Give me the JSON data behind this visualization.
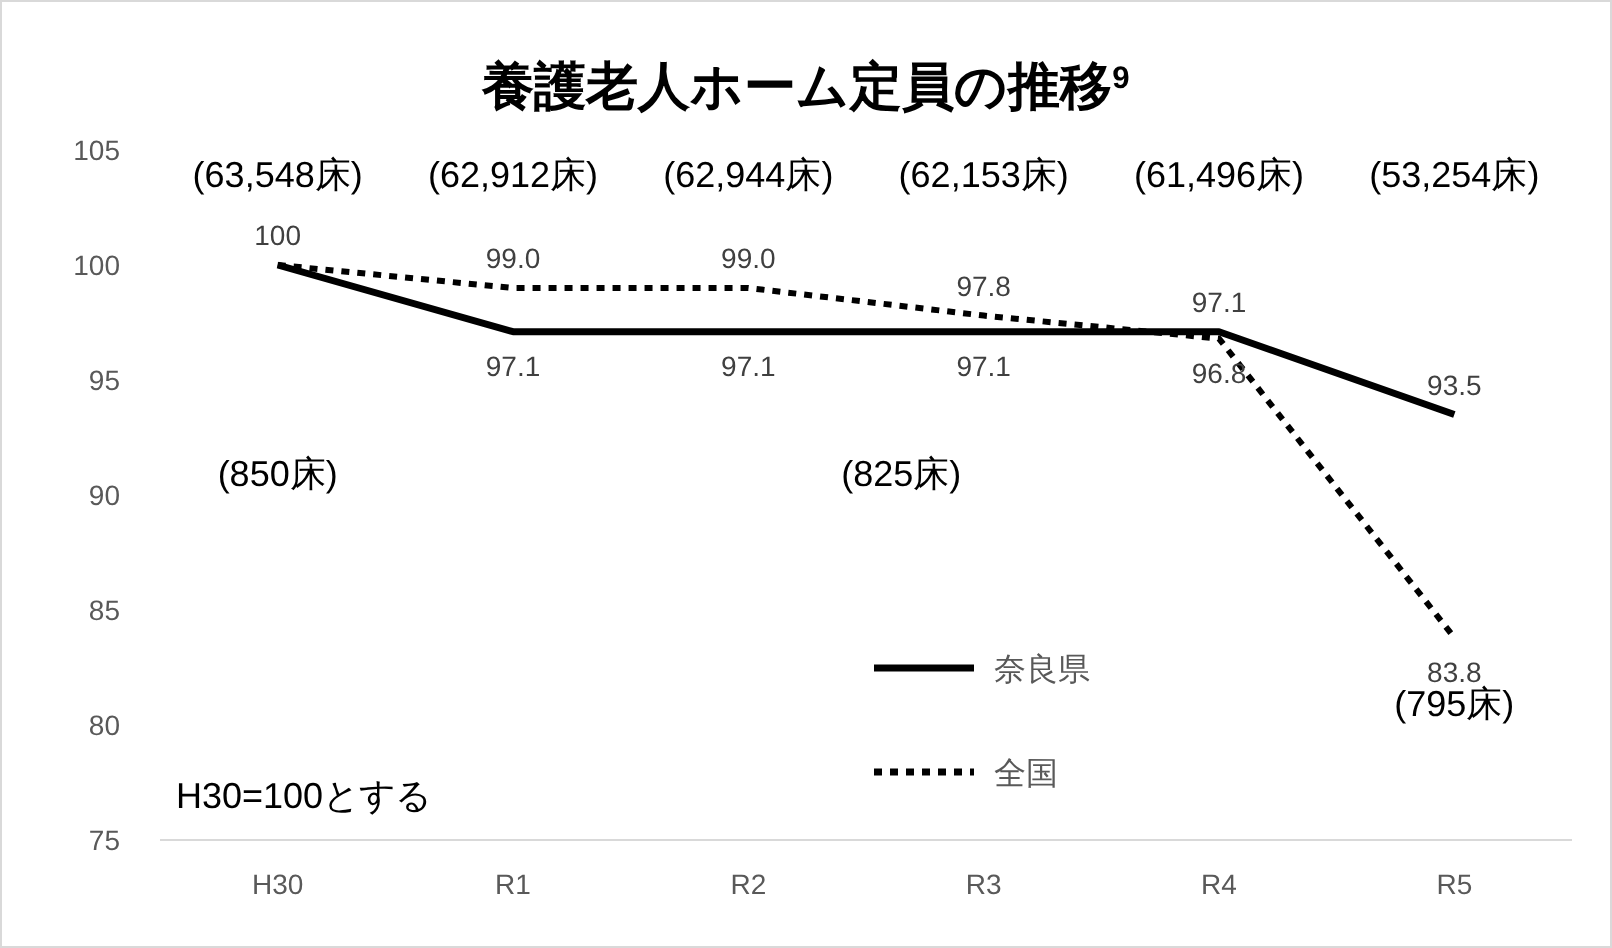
{
  "chart_data": {
    "type": "line",
    "title": "養護老人ホーム定員の推移$^{9}$",
    "categories": [
      "H30",
      "R1",
      "R2",
      "R3",
      "R4",
      "R5"
    ],
    "series": [
      {
        "name": "奈良県",
        "color": "#000000",
        "line_style": "solid",
        "values": [
          100,
          97.1,
          97.1,
          97.1,
          97.1,
          93.5
        ],
        "value_labels": [
          "100",
          "97.1",
          "97.1",
          "97.1",
          "97.1",
          "93.5"
        ]
      },
      {
        "name": "全国",
        "color": "#000000",
        "line_style": "dotted",
        "values": [
          100,
          99.0,
          99.0,
          97.8,
          96.8,
          83.8
        ],
        "value_labels": [
          null,
          "99.0",
          "99.0",
          "97.8",
          "96.8",
          "83.8"
        ]
      }
    ],
    "ylim": [
      75,
      105
    ],
    "yticks": [
      75,
      80,
      85,
      90,
      95,
      100,
      105
    ],
    "grid": false,
    "legend": "bottom right",
    "marker": "none",
    "annotations": [
      "(63,548床)",
      "(62,912床)",
      "(62,944床)",
      "(62,153床)",
      "(61,496床)",
      "(53,254床)",
      "(850床)",
      "(825床)",
      "(795床)",
      "H30=100とする"
    ]
  }
}
